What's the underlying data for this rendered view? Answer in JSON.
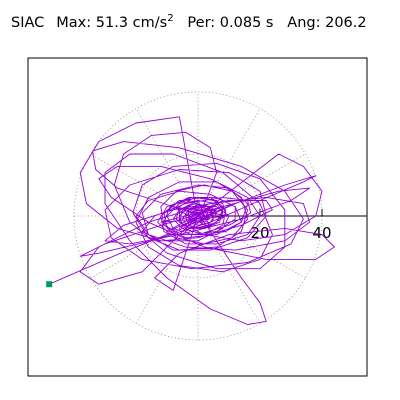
{
  "header": {
    "station": "SIAC",
    "max_label": "Max:",
    "max_value": "51.3",
    "max_unit": "cm/s",
    "max_unit_exp": "2",
    "per_label": "Per:",
    "per_value": "0.085 s",
    "ang_label": "Ang:",
    "ang_value": "206.2"
  },
  "colors": {
    "trace": "#9400D3",
    "start_marker": "#009966",
    "axis": "#000000",
    "grid": "#888888",
    "frame": "#000000",
    "background": "#ffffff"
  },
  "chart_data": {
    "type": "scatter",
    "title": "",
    "xlabel": "",
    "ylabel": "",
    "polar_grid": {
      "rings": [
        20,
        40
      ],
      "spoke_step_deg": 30,
      "style": "dotted"
    },
    "axis_ticks": [
      {
        "value": 20,
        "label": "20"
      },
      {
        "value": 40,
        "label": "40"
      }
    ],
    "xlim": [
      -55,
      55
    ],
    "ylim": [
      -55,
      55
    ],
    "start_point": {
      "x": -48,
      "y": -22
    },
    "trace": {
      "name": "",
      "points": [
        [
          -48,
          -22
        ],
        [
          -25,
          -12
        ],
        [
          -5,
          -4
        ],
        [
          12,
          4
        ],
        [
          28,
          10
        ],
        [
          38,
          13
        ],
        [
          34,
          11
        ],
        [
          20,
          5
        ],
        [
          4,
          -2
        ],
        [
          -15,
          -8
        ],
        [
          -32,
          -12
        ],
        [
          -38,
          -13
        ],
        [
          -30,
          -9
        ],
        [
          -12,
          -3
        ],
        [
          8,
          3
        ],
        [
          26,
          8
        ],
        [
          36,
          9
        ],
        [
          30,
          5
        ],
        [
          14,
          -1
        ],
        [
          -6,
          -6
        ],
        [
          -22,
          -9
        ],
        [
          -30,
          -8
        ],
        [
          -24,
          -3
        ],
        [
          -8,
          2
        ],
        [
          10,
          5
        ],
        [
          22,
          5
        ],
        [
          24,
          2
        ],
        [
          14,
          -3
        ],
        [
          0,
          -7
        ],
        [
          -12,
          -8
        ],
        [
          -18,
          -5
        ],
        [
          -14,
          0
        ],
        [
          -4,
          4
        ],
        [
          8,
          6
        ],
        [
          16,
          5
        ],
        [
          17,
          1
        ],
        [
          10,
          -3
        ],
        [
          0,
          -6
        ],
        [
          -9,
          -6
        ],
        [
          -13,
          -2
        ],
        [
          -10,
          3
        ],
        [
          -2,
          6
        ],
        [
          6,
          6
        ],
        [
          12,
          3
        ],
        [
          12,
          -1
        ],
        [
          6,
          -5
        ],
        [
          -2,
          -6
        ],
        [
          -8,
          -4
        ],
        [
          -10,
          0
        ],
        [
          -6,
          4
        ],
        [
          0,
          5
        ],
        [
          6,
          4
        ],
        [
          8,
          1
        ],
        [
          6,
          -2
        ],
        [
          0,
          -4
        ],
        [
          -5,
          -3
        ],
        [
          -6,
          0
        ],
        [
          -3,
          3
        ],
        [
          1,
          3
        ],
        [
          4,
          2
        ],
        [
          5,
          0
        ],
        [
          2,
          -2
        ],
        [
          -2,
          -2
        ],
        [
          -3,
          0
        ],
        [
          -1,
          2
        ],
        [
          2,
          2
        ],
        [
          3,
          0
        ],
        [
          0,
          -1
        ],
        [
          -2,
          0
        ],
        [
          0,
          1
        ],
        [
          4,
          3
        ],
        [
          -6,
          -4
        ],
        [
          8,
          5
        ],
        [
          -10,
          -5
        ],
        [
          12,
          4
        ],
        [
          -12,
          -2
        ],
        [
          10,
          0
        ],
        [
          -8,
          3
        ],
        [
          4,
          -4
        ],
        [
          0,
          5
        ],
        [
          -4,
          -5
        ],
        [
          6,
          2
        ],
        [
          -2,
          1
        ],
        [
          -14,
          5
        ],
        [
          -26,
          9
        ],
        [
          -33,
          15
        ],
        [
          -34,
          21
        ],
        [
          -24,
          24
        ],
        [
          -6,
          22
        ],
        [
          14,
          16
        ],
        [
          28,
          8
        ],
        [
          34,
          -1
        ],
        [
          30,
          -9
        ],
        [
          16,
          -15
        ],
        [
          -2,
          -17
        ],
        [
          -18,
          -14
        ],
        [
          -28,
          -7
        ],
        [
          -30,
          2
        ],
        [
          -22,
          10
        ],
        [
          -6,
          15
        ],
        [
          10,
          14
        ],
        [
          20,
          8
        ],
        [
          22,
          0
        ],
        [
          16,
          -7
        ],
        [
          4,
          -11
        ],
        [
          -8,
          -11
        ],
        [
          -16,
          -6
        ],
        [
          -18,
          1
        ],
        [
          -12,
          7
        ],
        [
          0,
          10
        ],
        [
          10,
          9
        ],
        [
          16,
          4
        ],
        [
          14,
          -2
        ],
        [
          6,
          -6
        ],
        [
          -4,
          -7
        ],
        [
          -10,
          -4
        ],
        [
          -11,
          1
        ],
        [
          -6,
          5
        ],
        [
          2,
          6
        ],
        [
          8,
          4
        ],
        [
          9,
          0
        ],
        [
          4,
          -3
        ],
        [
          -2,
          -4
        ],
        [
          -6,
          -2
        ],
        [
          -5,
          2
        ],
        [
          0,
          3
        ],
        [
          4,
          2
        ],
        [
          4,
          0
        ],
        [
          0,
          -2
        ],
        [
          -3,
          -1
        ],
        [
          -2,
          1
        ],
        [
          1,
          2
        ],
        [
          2,
          0
        ],
        [
          0,
          0
        ],
        [
          3,
          6
        ],
        [
          6,
          14
        ],
        [
          4,
          22
        ],
        [
          -4,
          27
        ],
        [
          -15,
          26
        ],
        [
          -24,
          20
        ],
        [
          -27,
          10
        ],
        [
          -22,
          -2
        ],
        [
          -10,
          -12
        ],
        [
          6,
          -17
        ],
        [
          20,
          -17
        ],
        [
          28,
          -10
        ],
        [
          28,
          2
        ],
        [
          20,
          12
        ],
        [
          6,
          17
        ],
        [
          -8,
          16
        ],
        [
          -18,
          10
        ],
        [
          -21,
          1
        ],
        [
          -16,
          -7
        ],
        [
          -6,
          -11
        ],
        [
          6,
          -10
        ],
        [
          14,
          -5
        ],
        [
          16,
          2
        ],
        [
          11,
          8
        ],
        [
          2,
          10
        ],
        [
          -7,
          8
        ],
        [
          -12,
          3
        ],
        [
          -11,
          -3
        ],
        [
          -5,
          -6
        ],
        [
          2,
          -6
        ],
        [
          8,
          -3
        ],
        [
          9,
          2
        ],
        [
          5,
          5
        ],
        [
          -1,
          6
        ],
        [
          -6,
          3
        ],
        [
          -7,
          -1
        ],
        [
          -3,
          -4
        ],
        [
          2,
          -4
        ],
        [
          5,
          -1
        ],
        [
          4,
          2
        ],
        [
          0,
          3
        ],
        [
          -3,
          2
        ],
        [
          -3,
          -1
        ],
        [
          0,
          -2
        ],
        [
          2,
          -1
        ],
        [
          1,
          1
        ],
        [
          0,
          1
        ],
        [
          6,
          -8
        ],
        [
          14,
          -20
        ],
        [
          20,
          -28
        ],
        [
          22,
          -34
        ],
        [
          16,
          -35
        ],
        [
          4,
          -30
        ],
        [
          -10,
          -20
        ],
        [
          -22,
          -8
        ],
        [
          -30,
          4
        ],
        [
          -30,
          14
        ],
        [
          -22,
          20
        ],
        [
          -8,
          20
        ],
        [
          8,
          14
        ],
        [
          20,
          4
        ],
        [
          24,
          -6
        ],
        [
          20,
          -14
        ],
        [
          8,
          -18
        ],
        [
          -6,
          -16
        ],
        [
          -16,
          -10
        ],
        [
          -20,
          -2
        ],
        [
          -16,
          6
        ],
        [
          -6,
          11
        ],
        [
          6,
          11
        ],
        [
          14,
          6
        ],
        [
          16,
          -1
        ],
        [
          11,
          -7
        ],
        [
          2,
          -9
        ],
        [
          -7,
          -7
        ],
        [
          -11,
          -2
        ],
        [
          -9,
          3
        ],
        [
          -3,
          6
        ],
        [
          4,
          6
        ],
        [
          8,
          3
        ],
        [
          7,
          -2
        ],
        [
          2,
          -4
        ],
        [
          -3,
          -4
        ],
        [
          -5,
          -1
        ],
        [
          -3,
          2
        ],
        [
          1,
          3
        ],
        [
          3,
          2
        ],
        [
          3,
          -1
        ],
        [
          0,
          -2
        ],
        [
          -2,
          -1
        ],
        [
          -1,
          1
        ],
        [
          1,
          1
        ],
        [
          0,
          0
        ],
        [
          -8,
          -24
        ],
        [
          -14,
          -20
        ],
        [
          -6,
          -12
        ],
        [
          10,
          -6
        ],
        [
          28,
          -4
        ],
        [
          40,
          -6
        ],
        [
          44,
          -10
        ],
        [
          38,
          -14
        ],
        [
          22,
          -14
        ],
        [
          2,
          -10
        ],
        [
          -16,
          -2
        ],
        [
          -28,
          6
        ],
        [
          -32,
          12
        ],
        [
          -26,
          16
        ],
        [
          -12,
          16
        ],
        [
          4,
          12
        ],
        [
          16,
          6
        ],
        [
          20,
          0
        ],
        [
          16,
          -6
        ],
        [
          6,
          -9
        ],
        [
          -4,
          -9
        ],
        [
          -11,
          -5
        ],
        [
          -12,
          0
        ],
        [
          -7,
          4
        ],
        [
          0,
          6
        ],
        [
          6,
          5
        ],
        [
          8,
          2
        ],
        [
          6,
          -2
        ],
        [
          1,
          -4
        ],
        [
          -3,
          -3
        ],
        [
          -4,
          0
        ],
        [
          -2,
          2
        ],
        [
          1,
          2
        ],
        [
          2,
          1
        ],
        [
          1,
          -1
        ],
        [
          0,
          0
        ],
        [
          -18,
          -18
        ],
        [
          -32,
          -22
        ],
        [
          -38,
          -18
        ],
        [
          -32,
          -10
        ],
        [
          -16,
          -2
        ],
        [
          4,
          4
        ],
        [
          22,
          6
        ],
        [
          34,
          4
        ],
        [
          36,
          -2
        ],
        [
          28,
          -8
        ],
        [
          12,
          -11
        ],
        [
          -4,
          -10
        ],
        [
          -16,
          -6
        ],
        [
          -20,
          0
        ],
        [
          -16,
          5
        ],
        [
          -6,
          8
        ],
        [
          4,
          7
        ],
        [
          12,
          3
        ],
        [
          14,
          -2
        ],
        [
          9,
          -5
        ],
        [
          2,
          -6
        ],
        [
          -5,
          -4
        ],
        [
          -8,
          -1
        ],
        [
          -6,
          2
        ],
        [
          -1,
          4
        ],
        [
          4,
          3
        ],
        [
          6,
          1
        ],
        [
          4,
          -2
        ],
        [
          0,
          -3
        ],
        [
          -3,
          -2
        ],
        [
          -3,
          1
        ],
        [
          0,
          2
        ],
        [
          2,
          1
        ],
        [
          1,
          -1
        ],
        [
          0,
          0
        ],
        [
          26,
          20
        ],
        [
          34,
          16
        ],
        [
          40,
          8
        ],
        [
          38,
          0
        ],
        [
          28,
          -6
        ],
        [
          14,
          -8
        ],
        [
          2,
          -6
        ],
        [
          -6,
          -2
        ],
        [
          -6,
          2
        ],
        [
          -2,
          4
        ],
        [
          3,
          3
        ],
        [
          5,
          1
        ],
        [
          3,
          -1
        ],
        [
          0,
          -1
        ],
        [
          -6,
          32
        ],
        [
          -20,
          30
        ],
        [
          -32,
          24
        ],
        [
          -38,
          14
        ],
        [
          -36,
          4
        ],
        [
          -26,
          -4
        ],
        [
          -12,
          -8
        ],
        [
          0,
          -8
        ],
        [
          8,
          -4
        ],
        [
          10,
          0
        ],
        [
          6,
          3
        ],
        [
          2,
          3
        ],
        [
          -1,
          2
        ],
        [
          -2,
          0
        ],
        [
          0,
          -1
        ],
        [
          1,
          0
        ]
      ]
    }
  }
}
